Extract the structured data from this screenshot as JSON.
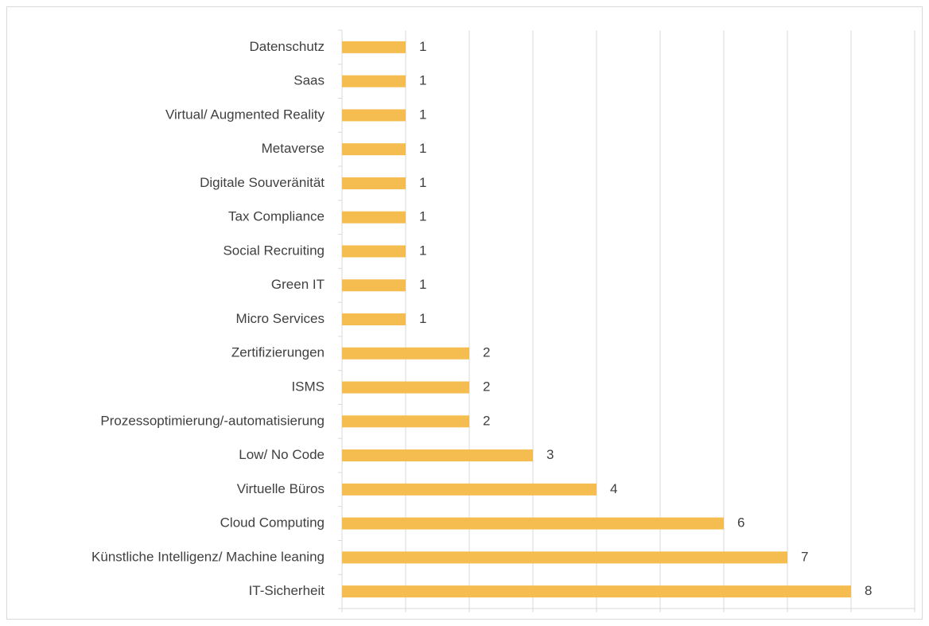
{
  "chart_data": {
    "type": "bar",
    "orientation": "horizontal",
    "categories": [
      "Datenschutz",
      "Saas",
      "Virtual/ Augmented Reality",
      "Metaverse",
      "Digitale Souveränität",
      "Tax Compliance",
      "Social Recruiting",
      "Green IT",
      "Micro Services",
      "Zertifizierungen",
      "ISMS",
      "Prozessoptimierung/-automatisierung",
      "Low/ No Code",
      "Virtuelle Büros",
      "Cloud Computing",
      "Künstliche Intelligenz/ Machine leaning",
      "IT-Sicherheit"
    ],
    "values": [
      1,
      1,
      1,
      1,
      1,
      1,
      1,
      1,
      1,
      2,
      2,
      2,
      3,
      4,
      6,
      7,
      8
    ],
    "color": "#f5bd4f",
    "xlim": [
      0,
      9
    ],
    "xticks": [
      0,
      1,
      2,
      3,
      4,
      5,
      6,
      7,
      8,
      9
    ],
    "grid": true
  }
}
